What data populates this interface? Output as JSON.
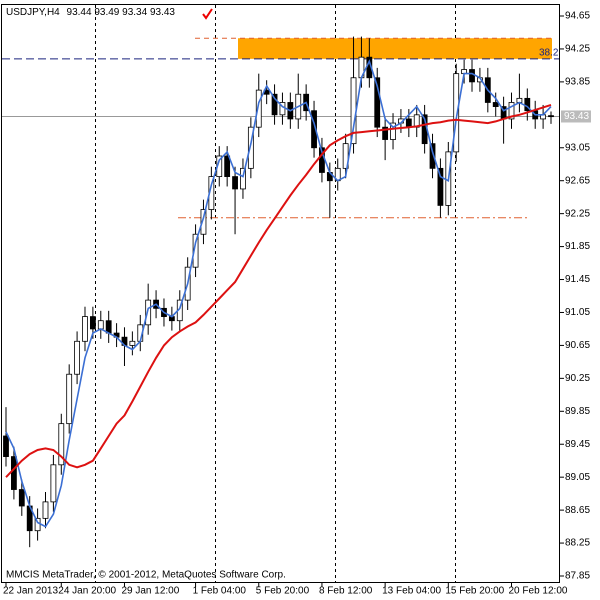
{
  "chart_data": {
    "type": "candlestick",
    "symbol": "USDJPY,H4",
    "footer": "MMCIS MetaTrader, © 2001-2012, MetaQuotes Software Corp.",
    "categories": [
      "22 Jan 2013",
      null,
      null,
      null,
      null,
      null,
      null,
      "24 Jan 20:00",
      null,
      null,
      null,
      null,
      null,
      null,
      null,
      "29 Jan 12:00",
      null,
      null,
      null,
      null,
      null,
      null,
      null,
      null,
      "1 Feb 04:00",
      null,
      null,
      null,
      null,
      null,
      null,
      null,
      "5 Feb 20:00",
      null,
      null,
      null,
      null,
      null,
      null,
      null,
      "8 Feb 12:00",
      null,
      null,
      null,
      null,
      null,
      null,
      null,
      "13 Feb 04:00",
      null,
      null,
      null,
      null,
      null,
      null,
      null,
      "15 Feb 20:00",
      null,
      null,
      null,
      null,
      null,
      null,
      null,
      "20 Feb 12:00",
      null,
      null,
      null,
      null,
      null
    ],
    "open": [
      89.55,
      89.3,
      88.9,
      88.7,
      88.4,
      88.55,
      88.75,
      89.2,
      89.7,
      90.3,
      90.7,
      91.0,
      90.85,
      90.95,
      90.8,
      90.75,
      90.65,
      90.7,
      90.9,
      91.2,
      91.1,
      91.0,
      90.95,
      91.2,
      91.6,
      92.0,
      92.3,
      92.7,
      92.95,
      92.7,
      92.55,
      92.8,
      93.3,
      93.75,
      93.7,
      93.45,
      93.6,
      93.4,
      93.7,
      93.5,
      93.05,
      92.75,
      92.65,
      92.8,
      93.1,
      93.9,
      94.15,
      93.9,
      93.3,
      93.15,
      93.35,
      93.4,
      93.3,
      93.45,
      93.1,
      92.8,
      92.35,
      93.0,
      93.95,
      94.0,
      93.85,
      93.9,
      93.6,
      93.55,
      93.4,
      93.6,
      93.65,
      93.5,
      93.4,
      93.44
    ],
    "high": [
      89.9,
      89.42,
      89.02,
      88.82,
      88.67,
      88.87,
      89.32,
      89.82,
      90.42,
      90.82,
      91.12,
      91.12,
      91.07,
      91.07,
      90.92,
      90.87,
      90.82,
      91.02,
      91.4,
      91.32,
      91.22,
      91.12,
      91.32,
      91.72,
      92.12,
      92.42,
      92.82,
      93.07,
      93.07,
      92.82,
      92.92,
      93.42,
      93.95,
      93.87,
      93.82,
      93.72,
      93.72,
      93.95,
      93.82,
      93.62,
      93.17,
      92.87,
      92.92,
      93.22,
      94.4,
      94.4,
      94.38,
      94.02,
      93.42,
      93.47,
      93.52,
      93.52,
      93.57,
      93.57,
      93.22,
      92.92,
      93.12,
      94.07,
      94.12,
      94.12,
      94.02,
      94.02,
      93.72,
      93.67,
      93.72,
      93.95,
      93.77,
      93.62,
      93.57,
      93.49
    ],
    "low": [
      89.18,
      88.78,
      88.58,
      88.2,
      88.28,
      88.43,
      88.63,
      89.08,
      89.58,
      90.18,
      90.58,
      90.73,
      90.73,
      90.68,
      90.63,
      90.4,
      90.53,
      90.58,
      90.78,
      90.98,
      90.88,
      90.83,
      90.83,
      91.08,
      91.48,
      91.88,
      92.18,
      92.58,
      92.58,
      92.0,
      92.43,
      92.68,
      93.18,
      93.58,
      93.33,
      93.33,
      93.28,
      93.28,
      93.38,
      92.93,
      92.63,
      92.2,
      92.53,
      92.68,
      92.98,
      93.78,
      93.78,
      93.18,
      92.9,
      93.03,
      93.23,
      93.18,
      93.18,
      92.98,
      92.68,
      92.2,
      92.23,
      92.88,
      93.83,
      93.73,
      93.73,
      93.48,
      93.43,
      93.1,
      93.28,
      93.48,
      93.38,
      93.28,
      93.28,
      93.34
    ],
    "close": [
      89.3,
      88.9,
      88.7,
      88.4,
      88.55,
      88.75,
      89.2,
      89.7,
      90.3,
      90.7,
      91.0,
      90.85,
      90.95,
      90.8,
      90.75,
      90.65,
      90.7,
      90.9,
      91.2,
      91.1,
      91.0,
      90.95,
      91.2,
      91.6,
      92.0,
      92.3,
      92.7,
      92.95,
      92.7,
      92.55,
      92.8,
      93.3,
      93.75,
      93.7,
      93.45,
      93.6,
      93.4,
      93.7,
      93.5,
      93.05,
      92.75,
      92.65,
      92.8,
      93.1,
      93.9,
      94.15,
      93.9,
      93.3,
      93.15,
      93.35,
      93.4,
      93.3,
      93.45,
      93.1,
      92.8,
      92.35,
      93.0,
      93.95,
      94.0,
      93.85,
      93.9,
      93.6,
      93.55,
      93.4,
      93.6,
      93.65,
      93.5,
      93.4,
      93.45,
      93.43
    ],
    "up_color": "#ffffff",
    "down_color": "#000000",
    "ma_fast": {
      "color": "#3b6fd4",
      "values": [
        89.6,
        89.4,
        89.0,
        88.7,
        88.5,
        88.45,
        88.6,
        88.95,
        89.5,
        90.0,
        90.5,
        90.8,
        90.85,
        90.8,
        90.75,
        90.65,
        90.6,
        90.7,
        91.1,
        91.15,
        91.05,
        91.0,
        91.1,
        91.4,
        91.9,
        92.2,
        92.6,
        92.9,
        93.0,
        92.75,
        92.7,
        93.1,
        93.6,
        93.8,
        93.65,
        93.55,
        93.5,
        93.55,
        93.6,
        93.35,
        93.0,
        92.75,
        92.65,
        92.7,
        93.3,
        93.9,
        94.1,
        93.8,
        93.4,
        93.3,
        93.35,
        93.45,
        93.55,
        93.4,
        93.0,
        92.7,
        92.65,
        93.4,
        93.95,
        93.95,
        93.9,
        93.75,
        93.65,
        93.5,
        93.55,
        93.6,
        93.55,
        93.45,
        93.45,
        93.55
      ]
    },
    "ma_slow": {
      "color": "#dd1111",
      "values": [
        89.05,
        89.15,
        89.25,
        89.33,
        89.38,
        89.4,
        89.38,
        89.3,
        89.2,
        89.17,
        89.2,
        89.25,
        89.4,
        89.55,
        89.7,
        89.8,
        89.97,
        90.15,
        90.33,
        90.5,
        90.65,
        90.75,
        90.82,
        90.88,
        90.93,
        91.02,
        91.12,
        91.22,
        91.32,
        91.42,
        91.58,
        91.74,
        91.9,
        92.05,
        92.19,
        92.33,
        92.47,
        92.6,
        92.72,
        92.85,
        92.97,
        93.08,
        93.14,
        93.19,
        93.23,
        93.24,
        93.25,
        93.26,
        93.27,
        93.28,
        93.29,
        93.3,
        93.31,
        93.33,
        93.35,
        93.36,
        93.38,
        93.39,
        93.38,
        93.37,
        93.36,
        93.35,
        93.37,
        93.4,
        93.43,
        93.45,
        93.48,
        93.51,
        93.54,
        93.57
      ]
    },
    "fib_level": {
      "label": 38.2,
      "price": 94.13,
      "color": "#1a237e"
    },
    "zone": {
      "low": 94.13,
      "high": 94.38,
      "color": "#ffa500"
    },
    "resistance": {
      "price": 94.38,
      "color": "#e06030"
    },
    "support": {
      "price": 92.2,
      "color": "#e06030"
    },
    "ylim": [
      87.85,
      94.65
    ],
    "yticks": [
      94.65,
      94.25,
      93.85,
      93.05,
      92.65,
      92.25,
      91.85,
      91.45,
      91.05,
      90.65,
      90.25,
      89.85,
      89.45,
      89.05,
      88.65,
      88.25,
      87.85
    ]
  }
}
